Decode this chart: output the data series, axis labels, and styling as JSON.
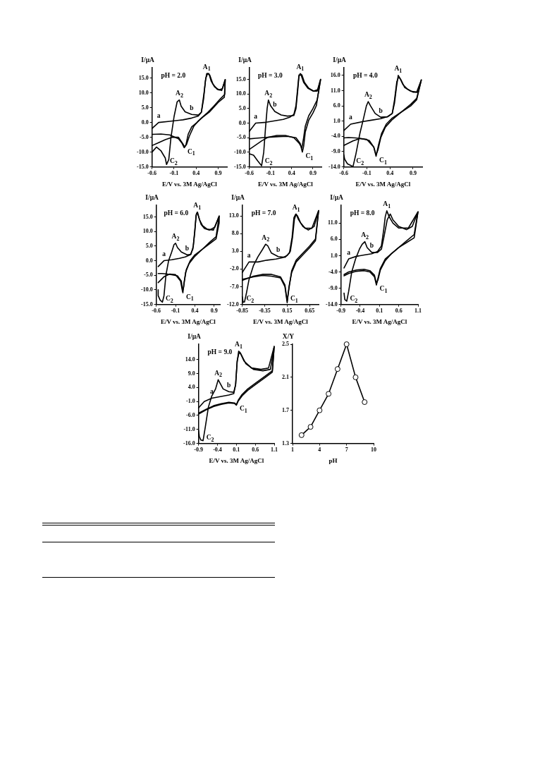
{
  "chart_data": [
    {
      "type": "line",
      "xlabel": "E/V vs. 3M Ag/AgCl",
      "ylabel": "I/μA",
      "marker": "none",
      "xlim": [
        -0.6,
        1.1
      ],
      "xticks": [
        -0.6,
        -0.1,
        0.4,
        0.9
      ],
      "ylim": [
        -15,
        18.5
      ],
      "yticks": [
        {
          "value": -15,
          "label": "-15.0"
        },
        {
          "value": -10,
          "label": "-10.0"
        },
        {
          "value": -5,
          "label": "-5.0"
        },
        {
          "value": 0,
          "label": "0.0"
        },
        {
          "value": 5,
          "label": "5.0"
        },
        {
          "value": 10,
          "label": "10.0"
        },
        {
          "value": 15,
          "label": "15.0"
        }
      ],
      "annotations": [
        "pH = 2.0",
        {
          "text": "A$_{1}$",
          "x": 0.64,
          "y": 16.5
        },
        {
          "text": "A$_{2}$",
          "x": 0.02,
          "y": 7.6
        },
        {
          "text": "C$_{1}$",
          "x": 0.13,
          "y": -8.5
        },
        {
          "text": "C$_{2}$",
          "x": -0.27,
          "y": -14.2
        },
        {
          "text": "a",
          "x": -0.45,
          "y": 0
        },
        {
          "text": "b",
          "x": 0.3,
          "y": 2.7
        }
      ],
      "series": [
        {
          "color": "#000000",
          "x": [
            -0.6,
            -0.45,
            -0.2,
            0.1,
            0.3,
            0.45,
            0.52,
            0.57,
            0.61,
            0.64,
            0.69,
            0.74,
            0.82,
            0.92,
            1.0,
            1.06,
            1.05,
            0.95,
            0.8,
            0.65,
            0.52,
            0.42,
            0.3,
            0.22,
            0.17,
            0.13,
            0.08,
            0,
            -0.2,
            -0.4,
            -0.6
          ],
          "values": [
            -2,
            0,
            0.4,
            0.9,
            1.5,
            2.2,
            3.5,
            8,
            14,
            16.5,
            16.5,
            14,
            12,
            11,
            11.5,
            14.5,
            9.5,
            8,
            5.5,
            3.2,
            1.5,
            0,
            -1.5,
            -4,
            -7.5,
            -8.5,
            -7,
            -5.5,
            -4.2,
            -3.9,
            -4
          ]
        },
        {
          "color": "#000000",
          "x": [
            -0.6,
            -0.5,
            -0.4,
            -0.3,
            -0.27,
            -0.22,
            -0.17,
            -0.1,
            -0.03,
            0.02,
            0.06,
            0.15,
            0.3,
            0.45,
            0.52,
            0.58,
            0.62,
            0.66,
            0.71,
            0.78,
            0.88,
            0.98,
            1.06,
            1.04,
            0.9,
            0.7,
            0.55,
            0.45,
            0.35,
            0.25,
            0.18,
            0.14,
            0.1,
            0,
            -0.15,
            -0.3,
            -0.45,
            -0.6
          ],
          "values": [
            -10,
            -8.3,
            -9.5,
            -12,
            -14.2,
            -12.5,
            -5,
            2,
            7,
            7.6,
            5.5,
            3.6,
            2.7,
            2.5,
            3.5,
            10,
            15,
            16.5,
            16,
            13,
            11.2,
            10.8,
            14.5,
            8.5,
            6.8,
            3.5,
            1.8,
            0.5,
            -1.2,
            -4.5,
            -7.5,
            -8.3,
            -7.2,
            -5,
            -5,
            -5.8,
            -6.8,
            -7.8
          ]
        }
      ]
    },
    {
      "type": "line",
      "xlabel": "E/V vs. 3M Ag/AgCl",
      "ylabel": "I/μA",
      "marker": "none",
      "xlim": [
        -0.6,
        1.1
      ],
      "xticks": [
        -0.6,
        -0.1,
        0.4,
        0.9
      ],
      "ylim": [
        -15,
        19
      ],
      "yticks": [
        {
          "value": -15,
          "label": "-15.0"
        },
        {
          "value": -10,
          "label": "-10.0"
        },
        {
          "value": -5,
          "label": "-5.0"
        },
        {
          "value": 0,
          "label": "0.0"
        },
        {
          "value": 5,
          "label": "5.0"
        },
        {
          "value": 10,
          "label": "10.0"
        },
        {
          "value": 15,
          "label": "15.0"
        }
      ],
      "annotations": [
        "pH = 3.0",
        {
          "text": "A$_{1}$",
          "x": 0.6,
          "y": 17
        },
        {
          "text": "A$_{2}$",
          "x": -0.15,
          "y": 7.9
        },
        {
          "text": "C$_{1}$",
          "x": 0.65,
          "y": -9.9
        },
        {
          "text": "C$_{2}$",
          "x": -0.31,
          "y": -14.6
        },
        {
          "text": "a",
          "x": -0.45,
          "y": 0
        },
        {
          "text": "b",
          "x": 0,
          "y": 4
        }
      ],
      "series": [
        {
          "color": "#000000",
          "x": [
            -0.6,
            -0.45,
            -0.2,
            0.0,
            0.2,
            0.35,
            0.45,
            0.5,
            0.54,
            0.57,
            0.62,
            0.68,
            0.78,
            0.9,
            1.0,
            1.08,
            0.98,
            0.9,
            0.8,
            0.72,
            0.68,
            0.65,
            0.6,
            0.5,
            0.3,
            0.1,
            -0.1,
            -0.3,
            -0.45,
            -0.6
          ],
          "values": [
            -2.8,
            0,
            0.3,
            0.8,
            1.3,
            2,
            3,
            6,
            12,
            16.5,
            16.5,
            14,
            12,
            11,
            11,
            15,
            6,
            3.5,
            1,
            -3,
            -8,
            -9.9,
            -7,
            -5,
            -4.5,
            -4.6,
            -4.8,
            -5,
            -5.2,
            -5.4
          ]
        },
        {
          "color": "#000000",
          "x": [
            -0.6,
            -0.5,
            -0.4,
            -0.31,
            -0.26,
            -0.22,
            -0.18,
            -0.15,
            -0.1,
            0,
            0.15,
            0.3,
            0.45,
            0.5,
            0.54,
            0.57,
            0.6,
            0.64,
            0.7,
            0.8,
            0.92,
            1.02,
            1.08,
            1.0,
            0.9,
            0.8,
            0.72,
            0.68,
            0.64,
            0.58,
            0.45,
            0.25,
            0.05,
            -0.15,
            -0.3,
            -0.45,
            -0.6
          ],
          "values": [
            -10.5,
            -11,
            -13,
            -14.6,
            -10,
            -2,
            5,
            7.9,
            6,
            4,
            2.8,
            2.4,
            2.6,
            5,
            11,
            16,
            17,
            16.5,
            14,
            12,
            11,
            11.5,
            15,
            8,
            5,
            2.5,
            -1,
            -5,
            -8.5,
            -7,
            -5,
            -4.2,
            -4.2,
            -4.8,
            -6,
            -7.5,
            -9
          ]
        }
      ]
    },
    {
      "type": "line",
      "xlabel": "E/V vs. 3M Ag/AgCl",
      "ylabel": "I/μA",
      "marker": "none",
      "xlim": [
        -0.6,
        1.1
      ],
      "xticks": [
        -0.6,
        -0.1,
        0.4,
        0.9
      ],
      "ylim": [
        -14,
        18.5
      ],
      "yticks": [
        {
          "value": -14,
          "label": "-14.0"
        },
        {
          "value": -9,
          "label": "-9.0"
        },
        {
          "value": -4,
          "label": "-4.0"
        },
        {
          "value": 1,
          "label": "1.0"
        },
        {
          "value": 6,
          "label": "6.0"
        },
        {
          "value": 11,
          "label": "11.0"
        },
        {
          "value": 16,
          "label": "16.0"
        }
      ],
      "annotations": [
        "pH = 4.0",
        {
          "text": "A$_{1}$",
          "x": 0.58,
          "y": 16
        },
        {
          "text": "A$_{2}$",
          "x": -0.07,
          "y": 7.4
        },
        {
          "text": "C$_{1}$",
          "x": 0.1,
          "y": -10.5
        },
        {
          "text": "C$_{2}$",
          "x": -0.4,
          "y": -13.9
        },
        {
          "text": "a",
          "x": -0.45,
          "y": 0
        },
        {
          "text": "b",
          "x": 0.2,
          "y": 2.3
        }
      ],
      "series": [
        {
          "color": "#000000",
          "x": [
            -0.6,
            -0.45,
            -0.2,
            0,
            0.2,
            0.35,
            0.45,
            0.5,
            0.54,
            0.58,
            0.62,
            0.68,
            0.78,
            0.9,
            1.0,
            1.08,
            0.98,
            0.85,
            0.65,
            0.45,
            0.32,
            0.22,
            0.15,
            0.1,
            0.05,
            -0.05,
            -0.2,
            -0.35,
            -0.5,
            -0.6
          ],
          "values": [
            -2.1,
            0,
            0.8,
            1.3,
            1.8,
            2.5,
            3.5,
            7,
            12,
            16,
            15,
            13,
            11.5,
            10.5,
            10.5,
            14.5,
            8,
            6,
            4,
            2,
            0,
            -3,
            -7,
            -10.5,
            -7.5,
            -5.3,
            -4.8,
            -4.5,
            -4.4,
            -4.5
          ]
        },
        {
          "color": "#000000",
          "x": [
            -0.6,
            -0.58,
            -0.52,
            -0.45,
            -0.4,
            -0.34,
            -0.25,
            -0.17,
            -0.11,
            -0.07,
            -0.02,
            0.08,
            0.2,
            0.35,
            0.45,
            0.5,
            0.55,
            0.59,
            0.64,
            0.72,
            0.85,
            0.98,
            1.08,
            0.98,
            0.85,
            0.65,
            0.45,
            0.3,
            0.2,
            0.14,
            0.1,
            0.05,
            -0.1,
            -0.25,
            -0.4,
            -0.6
          ],
          "values": [
            -10,
            -11.5,
            -13,
            -13.5,
            -13.9,
            -10,
            -3,
            2,
            6,
            7.4,
            6,
            3.5,
            2.3,
            2.4,
            3.5,
            8,
            14,
            15.5,
            14.5,
            12,
            10.8,
            10.5,
            14.5,
            8.5,
            6.5,
            4,
            1.5,
            -1,
            -4.5,
            -8.5,
            -10,
            -7.5,
            -5,
            -4.7,
            -5.5,
            -7
          ]
        }
      ]
    },
    {
      "type": "line",
      "xlabel": "E/V vs. 3M Ag/AgCl",
      "ylabel": "I/μA",
      "marker": "none",
      "xlim": [
        -0.6,
        1.05
      ],
      "xticks": [
        -0.6,
        -0.1,
        0.4,
        0.9
      ],
      "ylim": [
        -15,
        19
      ],
      "yticks": [
        {
          "value": -15,
          "label": "-15.0"
        },
        {
          "value": -10,
          "label": "-10.0"
        },
        {
          "value": -5,
          "label": "-5.0"
        },
        {
          "value": 0,
          "label": "0.0"
        },
        {
          "value": 5,
          "label": "5.0"
        },
        {
          "value": 10,
          "label": "10.0"
        },
        {
          "value": 15,
          "label": "15.0"
        }
      ],
      "annotations": [
        "pH = 6.0",
        {
          "text": "A$_{1}$",
          "x": 0.46,
          "y": 16.6
        },
        {
          "text": "A$_{2}$",
          "x": -0.1,
          "y": 6
        },
        {
          "text": "C$_{1}$",
          "x": 0.09,
          "y": -11
        },
        {
          "text": "C$_{2}$",
          "x": -0.44,
          "y": -14.2
        },
        {
          "text": "a",
          "x": -0.4,
          "y": 0
        },
        {
          "text": "b",
          "x": 0.2,
          "y": 2
        }
      ],
      "series": [
        {
          "color": "#000000",
          "x": [
            -0.55,
            -0.4,
            -0.2,
            0,
            0.15,
            0.28,
            0.35,
            0.4,
            0.43,
            0.46,
            0.5,
            0.56,
            0.65,
            0.78,
            0.92,
            1.03,
            1.03,
            0.95,
            0.8,
            0.6,
            0.4,
            0.28,
            0.18,
            0.12,
            0.09,
            0.05,
            -0.05,
            -0.2,
            -0.35,
            -0.45,
            -0.55
          ],
          "values": [
            -2,
            0,
            0.3,
            0.8,
            1.3,
            2,
            4,
            10,
            15.5,
            16.6,
            15,
            12.5,
            11,
            10.5,
            11.5,
            15.3,
            13,
            7.5,
            6,
            4,
            2,
            0,
            -3,
            -7.5,
            -11,
            -7,
            -5.2,
            -4.8,
            -4.5,
            -4.4,
            -4.4
          ]
        },
        {
          "color": "#000000",
          "x": [
            -0.55,
            -0.55,
            -0.5,
            -0.44,
            -0.4,
            -0.35,
            -0.28,
            -0.2,
            -0.14,
            -0.1,
            -0.05,
            0.05,
            0.2,
            0.3,
            0.36,
            0.41,
            0.44,
            0.47,
            0.52,
            0.6,
            0.72,
            0.88,
            1.03,
            0.95,
            0.8,
            0.6,
            0.4,
            0.25,
            0.16,
            0.11,
            0.08,
            0.03,
            -0.1,
            -0.25,
            -0.4,
            -0.55
          ],
          "values": [
            -10,
            -12,
            -13.5,
            -14.2,
            -12,
            -5,
            0,
            3,
            5.5,
            6,
            4.5,
            3,
            2,
            2.2,
            5,
            12,
            16,
            16.6,
            14,
            12,
            10.8,
            10.5,
            15.3,
            8.2,
            6.5,
            4,
            1.5,
            -1,
            -4,
            -9,
            -10.5,
            -7,
            -4.8,
            -4.6,
            -5.5,
            -7.5
          ]
        }
      ]
    },
    {
      "type": "line",
      "xlabel": "E/V vs. 3M Ag/AgCl",
      "ylabel": "I/μA",
      "marker": "none",
      "xlim": [
        -0.85,
        0.85
      ],
      "xticks": [
        -0.85,
        -0.35,
        0.15,
        0.65
      ],
      "ylim": [
        -12,
        16
      ],
      "yticks": [
        {
          "value": -12,
          "label": "-12.0"
        },
        {
          "value": -7,
          "label": "-7.0"
        },
        {
          "value": -2,
          "label": "-2.0"
        },
        {
          "value": 3,
          "label": "3.0"
        },
        {
          "value": 8,
          "label": "8.0"
        },
        {
          "value": 13,
          "label": "13.0"
        }
      ],
      "annotations": [
        "pH = 7.0",
        {
          "text": "A$_{1}$",
          "x": 0.35,
          "y": 13.5
        },
        {
          "text": "A$_{2}$",
          "x": -0.33,
          "y": 5
        },
        {
          "text": "C$_{1}$",
          "x": 0.15,
          "y": -11.5
        },
        {
          "text": "C$_{2}$",
          "x": -0.83,
          "y": -11.4
        },
        {
          "text": "a",
          "x": -0.7,
          "y": 0
        },
        {
          "text": "b",
          "x": -0.05,
          "y": 1.5
        }
      ],
      "series": [
        {
          "color": "#000000",
          "x": [
            -0.85,
            -0.7,
            -0.5,
            -0.3,
            -0.1,
            0.05,
            0.15,
            0.22,
            0.27,
            0.31,
            0.35,
            0.4,
            0.5,
            0.62,
            0.75,
            0.85,
            0.78,
            0.65,
            0.5,
            0.35,
            0.25,
            0.19,
            0.15,
            0.1,
            0,
            -0.2,
            -0.4,
            -0.6,
            -0.85
          ],
          "values": [
            -3,
            0,
            0,
            0.5,
            0.8,
            1.2,
            1.8,
            3,
            7,
            12,
            13.5,
            12,
            10,
            9,
            10,
            14.5,
            6,
            4,
            2,
            0,
            -3,
            -7,
            -11.5,
            -7,
            -4.5,
            -4,
            -3.8,
            -4.2,
            -4.9
          ]
        },
        {
          "color": "#000000",
          "x": [
            -0.85,
            -0.83,
            -0.8,
            -0.76,
            -0.7,
            -0.6,
            -0.5,
            -0.4,
            -0.33,
            -0.28,
            -0.2,
            -0.05,
            0.1,
            0.2,
            0.26,
            0.3,
            0.34,
            0.38,
            0.45,
            0.55,
            0.7,
            0.85,
            0.78,
            0.65,
            0.5,
            0.35,
            0.25,
            0.19,
            0.15,
            0.1,
            0,
            -0.2,
            -0.4,
            -0.6,
            -0.85
          ],
          "values": [
            -9.8,
            -11.4,
            -11.3,
            -9,
            -5,
            -1,
            1.5,
            3.5,
            5,
            4.5,
            2.5,
            1.5,
            1.3,
            2.5,
            7,
            12.5,
            13.5,
            13,
            11,
            9.5,
            9.5,
            14.5,
            6.5,
            4.5,
            2.5,
            0.5,
            -2.5,
            -7.5,
            -11,
            -6.5,
            -4.2,
            -3.5,
            -3.5,
            -4,
            -5.2
          ]
        }
      ]
    },
    {
      "type": "line",
      "xlabel": "E/V vs. 3M Ag/AgCl",
      "ylabel": "I/μA",
      "marker": "none",
      "xlim": [
        -0.9,
        1.1
      ],
      "xticks": [
        -0.9,
        -0.4,
        0.1,
        0.6,
        1.1
      ],
      "ylim": [
        -14,
        16.5
      ],
      "yticks": [
        {
          "value": -14,
          "label": "-14.0"
        },
        {
          "value": -9,
          "label": "-9.0"
        },
        {
          "value": -4,
          "label": "-4.0"
        },
        {
          "value": 1,
          "label": "1.0"
        },
        {
          "value": 6,
          "label": "6.0"
        },
        {
          "value": 11,
          "label": "11.0"
        }
      ],
      "annotations": [
        "pH = 8.0",
        {
          "text": "A$_{1}$",
          "x": 0.29,
          "y": 14.8
        },
        {
          "text": "A$_{2}$",
          "x": -0.28,
          "y": 5.3
        },
        {
          "text": "C$_{1}$",
          "x": 0.02,
          "y": -8
        },
        {
          "text": "C$_{2}$",
          "x": -0.75,
          "y": -13
        },
        {
          "text": "a",
          "x": -0.7,
          "y": 0
        },
        {
          "text": "b",
          "x": -0.1,
          "y": 2
        }
      ],
      "series": [
        {
          "color": "#000000",
          "x": [
            -0.82,
            -0.7,
            -0.5,
            -0.3,
            -0.1,
            0.05,
            0.15,
            0.21,
            0.25,
            0.29,
            0.35,
            0.45,
            0.6,
            0.85,
            1.1,
            1.0,
            0.8,
            0.6,
            0.4,
            0.25,
            0.12,
            0.06,
            0.02,
            -0.03,
            -0.15,
            -0.3,
            -0.5,
            -0.7,
            -0.82
          ],
          "values": [
            -2.8,
            0,
            0.8,
            1.2,
            1.6,
            2.3,
            4,
            9,
            13,
            14.8,
            13,
            11,
            9.5,
            9.5,
            14.5,
            6.5,
            5,
            3.5,
            1.5,
            0,
            -3,
            -6,
            -8,
            -5.5,
            -4,
            -3.6,
            -3.8,
            -4.5,
            -5.2
          ]
        },
        {
          "color": "#000000",
          "x": [
            -0.82,
            -0.8,
            -0.75,
            -0.7,
            -0.62,
            -0.52,
            -0.42,
            -0.35,
            -0.28,
            -0.22,
            -0.1,
            0.05,
            0.15,
            0.22,
            0.3,
            0.38,
            0.45,
            0.6,
            0.8,
            0.95,
            1.1,
            1.0,
            0.8,
            0.6,
            0.4,
            0.25,
            0.12,
            0.06,
            0.02,
            -0.03,
            -0.15,
            -0.3,
            -0.5,
            -0.7,
            -0.82
          ],
          "values": [
            -10.5,
            -12.5,
            -13,
            -10,
            -4,
            0,
            3,
            4.5,
            5.3,
            3.5,
            2,
            2,
            3,
            7,
            12,
            13.8,
            12,
            10,
            9,
            10,
            14.5,
            7.5,
            5.5,
            3.5,
            1.5,
            -0.5,
            -3.5,
            -6.5,
            -7.5,
            -5,
            -3.6,
            -3.2,
            -3.4,
            -4,
            -4.8
          ]
        }
      ]
    },
    {
      "type": "line",
      "xlabel": "E/V vs. 3M Ag/AgCl",
      "ylabel": "I/μA",
      "marker": "none",
      "xlim": [
        -0.9,
        1.1
      ],
      "xticks": [
        -0.9,
        -0.4,
        0.1,
        0.6,
        1.1
      ],
      "ylim": [
        -16,
        19.5
      ],
      "yticks": [
        {
          "value": -16,
          "label": "-16.0"
        },
        {
          "value": -11,
          "label": "-11.0"
        },
        {
          "value": -6,
          "label": "-6.0"
        },
        {
          "value": -1,
          "label": "-1.0"
        },
        {
          "value": 4,
          "label": "4.0"
        },
        {
          "value": 9,
          "label": "9.0"
        },
        {
          "value": 14,
          "label": "14.0"
        }
      ],
      "annotations": [
        "pH = 9.0",
        {
          "text": "A$_{1}$",
          "x": 0.16,
          "y": 17
        },
        {
          "text": "A$_{2}$",
          "x": -0.38,
          "y": 6.8
        },
        {
          "text": "C$_{1}$",
          "x": 0.1,
          "y": -2.1
        },
        {
          "text": "C$_{2}$",
          "x": -0.78,
          "y": -15
        },
        {
          "text": "a",
          "x": -0.55,
          "y": 0.2
        },
        {
          "text": "b",
          "x": -0.1,
          "y": 2.5
        }
      ],
      "series": [
        {
          "color": "#000000",
          "x": [
            -0.9,
            -0.75,
            -0.55,
            -0.3,
            -0.1,
            0.03,
            0.08,
            0.12,
            0.16,
            0.2,
            0.3,
            0.5,
            0.75,
            0.95,
            1.1,
            1.05,
            0.85,
            0.6,
            0.4,
            0.25,
            0.15,
            0.1,
            0.05,
            -0.1,
            -0.3,
            -0.5,
            -0.7,
            -0.9
          ],
          "values": [
            -3.3,
            -1,
            0.2,
            0.8,
            1.3,
            1.8,
            5,
            13,
            17,
            16.5,
            13.5,
            11,
            10.5,
            11,
            18.7,
            10,
            8,
            5.5,
            3.5,
            1.5,
            -0.5,
            -2.1,
            -1.5,
            -1.3,
            -1.8,
            -2.5,
            -3.8,
            -5.2
          ]
        },
        {
          "color": "#000000",
          "x": [
            -0.9,
            -0.88,
            -0.84,
            -0.78,
            -0.72,
            -0.64,
            -0.55,
            -0.45,
            -0.38,
            -0.33,
            -0.25,
            -0.1,
            0.03,
            0.08,
            0.12,
            0.17,
            0.22,
            0.35,
            0.55,
            0.8,
            1.0,
            1.1,
            1.05,
            0.85,
            0.6,
            0.4,
            0.25,
            0.15,
            0.1,
            0.05,
            -0.1,
            -0.3,
            -0.5,
            -0.7,
            -0.9
          ],
          "values": [
            -11.3,
            -13.5,
            -14.8,
            -15,
            -10,
            -3,
            1,
            3.5,
            6.8,
            5.5,
            3.5,
            2.5,
            2.3,
            5,
            13.5,
            16.5,
            16,
            12.5,
            10.5,
            10,
            10.5,
            18.7,
            9.5,
            7.5,
            5,
            3,
            1,
            -0.8,
            -2.3,
            -1.7,
            -1.5,
            -2,
            -2.8,
            -4,
            -5.5
          ]
        }
      ]
    },
    {
      "type": "line",
      "xlabel": "pH",
      "ylabel": "X/Y",
      "marker": "circle",
      "xlim": [
        1,
        10
      ],
      "xticks": [
        1,
        4,
        7,
        10
      ],
      "ylim": [
        1.3,
        2.5
      ],
      "yticks": [
        1.3,
        1.7,
        2.1,
        2.5
      ],
      "series": [
        {
          "color": "#000000",
          "x": [
            2,
            3,
            4,
            5,
            6,
            7,
            8,
            9
          ],
          "values": [
            1.4,
            1.5,
            1.7,
            1.9,
            2.2,
            2.5,
            2.1,
            1.8
          ]
        }
      ]
    }
  ]
}
